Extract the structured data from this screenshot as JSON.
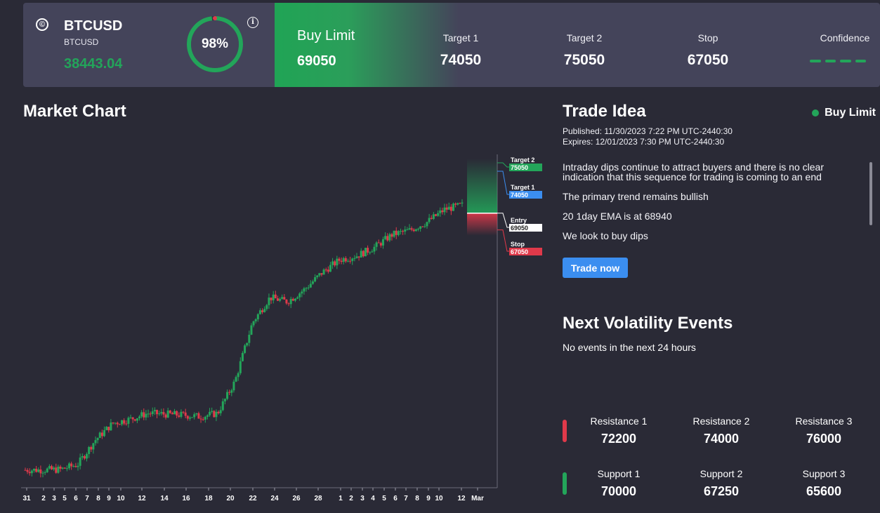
{
  "header": {
    "symbol": "BTCUSD",
    "symbol_sub": "BTCUSD",
    "price": "38443.04",
    "gauge_percent": 98,
    "gauge_label": "98%",
    "order_type": "Buy Limit",
    "order_value": "69050",
    "target1_label": "Target 1",
    "target1_value": "74050",
    "target2_label": "Target 2",
    "target2_value": "75050",
    "stop_label": "Stop",
    "stop_value": "67050",
    "confidence_label": "Confidence",
    "confidence_level": 5
  },
  "market_chart": {
    "title": "Market Chart"
  },
  "chart_data": {
    "type": "candlestick",
    "x_tick_labels": [
      "31",
      "2",
      "3",
      "5",
      "6",
      "7",
      "8",
      "9",
      "10",
      "12",
      "14",
      "16",
      "18",
      "20",
      "22",
      "24",
      "26",
      "28",
      "1",
      "2",
      "3",
      "4",
      "5",
      "6",
      "7",
      "8",
      "9",
      "10",
      "12",
      "Mar"
    ],
    "close_path": [
      38443,
      38450,
      38500,
      39100,
      42000,
      44000,
      44500,
      45200,
      45100,
      45000,
      44800,
      45200,
      49000,
      56000,
      59000,
      58500,
      60000,
      62000,
      63500,
      64000,
      65000,
      66500,
      67000,
      68000,
      69500,
      70000
    ],
    "levels": [
      {
        "label": "Target 2",
        "value": "75050",
        "color": "#23a55a"
      },
      {
        "label": "Target 1",
        "value": "74050",
        "color": "#3b8ef0"
      },
      {
        "label": "Entry",
        "value": "69050",
        "color": "#ffffff"
      },
      {
        "label": "Stop",
        "value": "67050",
        "color": "#e0394a"
      }
    ]
  },
  "trade_idea": {
    "title": "Trade Idea",
    "status": "Buy Limit",
    "published_label": "Published:",
    "published_value": "11/30/2023 7:22 PM UTC-2440:30",
    "expires_label": "Expires:",
    "expires_value": "12/01/2023 7:30 PM UTC-2440:30",
    "text1": "Intraday dips continue to attract buyers and there is no clear indication that this sequence for trading is coming to an end",
    "text2": "The primary trend remains bullish",
    "text3": "20 1day EMA is at 68940",
    "text4": "We look to buy dips",
    "button": "Trade now"
  },
  "volatility": {
    "title": "Next Volatility Events",
    "subtitle": "No events in the next 24 hours"
  },
  "levels": {
    "resistance": [
      {
        "label": "Resistance 1",
        "value": "72200"
      },
      {
        "label": "Resistance 2",
        "value": "74000"
      },
      {
        "label": "Resistance 3",
        "value": "76000"
      }
    ],
    "support": [
      {
        "label": "Support 1",
        "value": "70000"
      },
      {
        "label": "Support 2",
        "value": "67250"
      },
      {
        "label": "Support 3",
        "value": "65600"
      }
    ]
  }
}
